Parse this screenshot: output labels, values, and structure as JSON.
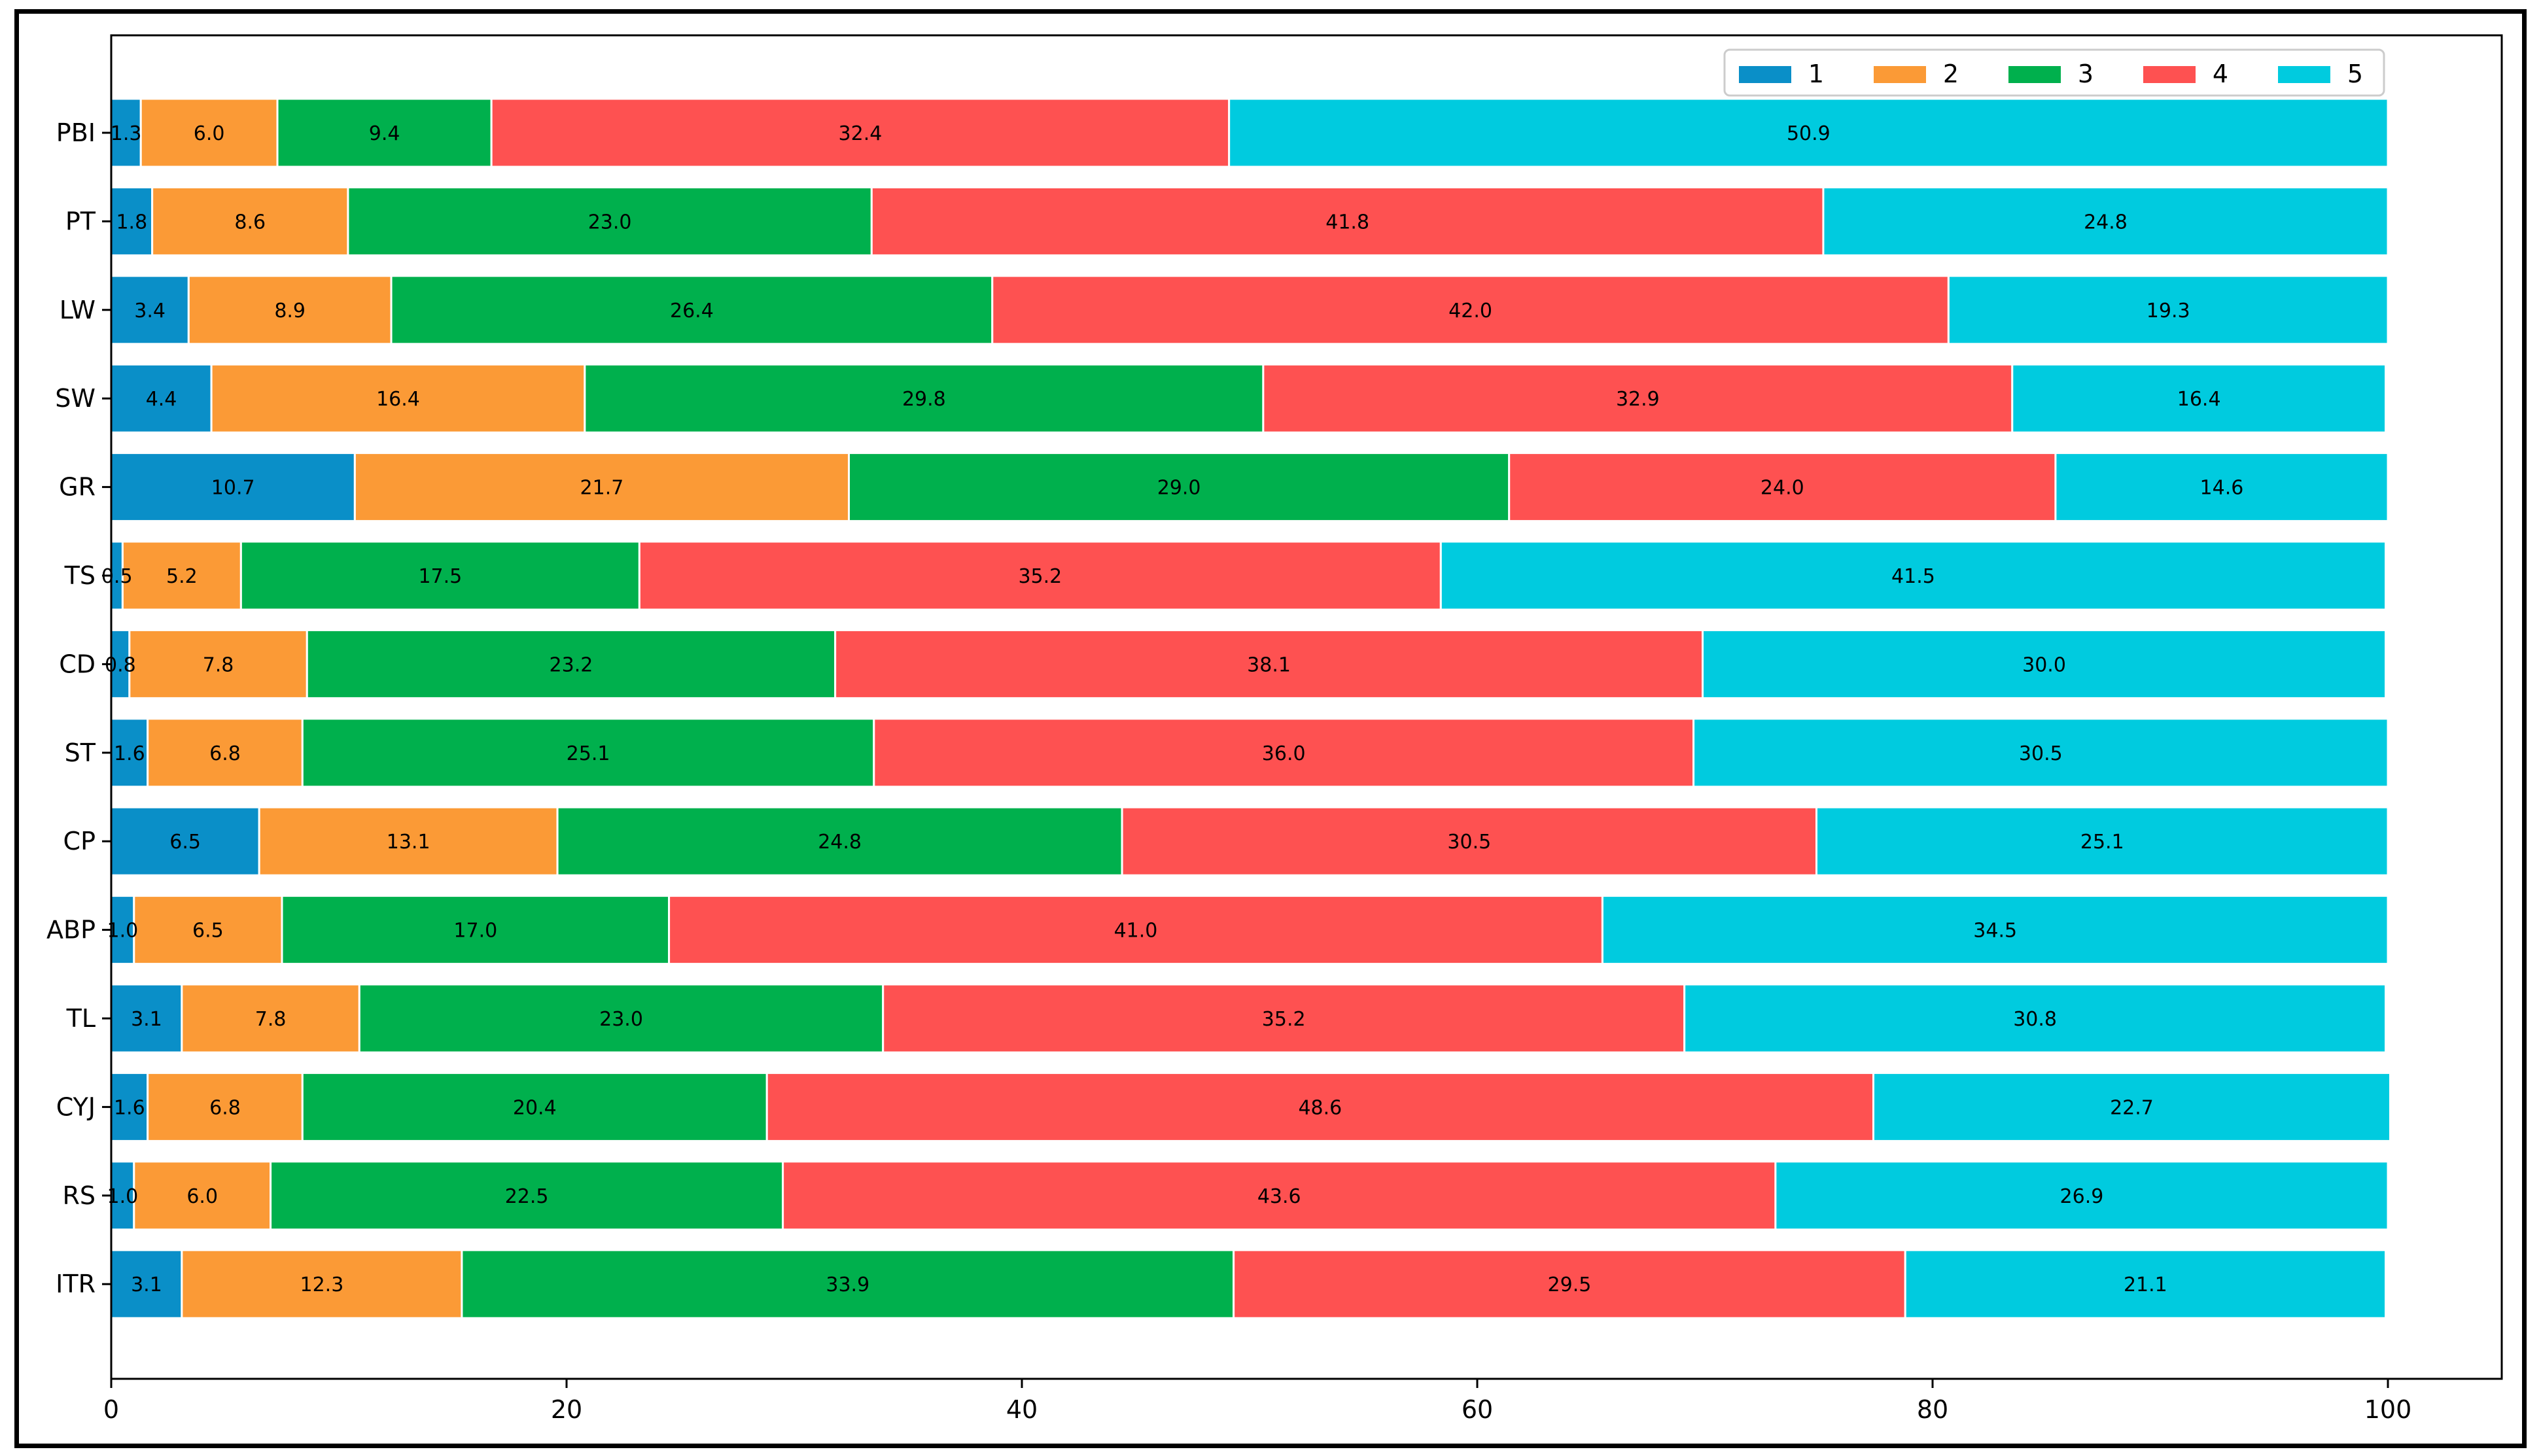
{
  "chart_data": {
    "type": "bar",
    "orientation": "horizontal",
    "stacked": true,
    "title": "",
    "xlabel": "",
    "ylabel": "",
    "xlim": [
      0,
      100
    ],
    "x_ticks": [
      "0",
      "20",
      "40",
      "60",
      "80",
      "100"
    ],
    "grid": false,
    "legend_position": "top-right",
    "categories": [
      "PBI",
      "PT",
      "LW",
      "SW",
      "GR",
      "TS",
      "CD",
      "ST",
      "CP",
      "ABP",
      "TL",
      "CYJ",
      "RS",
      "ITR"
    ],
    "series": [
      {
        "name": "1",
        "color": "#0a8fc8",
        "values": [
          1.3,
          1.8,
          3.4,
          4.4,
          10.7,
          0.5,
          0.8,
          1.6,
          6.5,
          1.0,
          3.1,
          1.6,
          1.0,
          3.1
        ],
        "labels": [
          "1.3",
          "1.8",
          "3.4",
          "4.4",
          "10.7",
          "0.5",
          "0.8",
          "1.6",
          "6.5",
          "1.0",
          "3.1",
          "1.6",
          "1.0",
          "3.1"
        ]
      },
      {
        "name": "2",
        "color": "#fb9a36",
        "values": [
          6.0,
          8.6,
          8.9,
          16.4,
          21.7,
          5.2,
          7.8,
          6.8,
          13.1,
          6.5,
          7.8,
          6.8,
          6.0,
          12.3
        ],
        "labels": [
          "6.0",
          "8.6",
          "8.9",
          "16.4",
          "21.7",
          "5.2",
          "7.8",
          "6.8",
          "13.1",
          "6.5",
          "7.8",
          "6.8",
          "6.0",
          "12.3"
        ]
      },
      {
        "name": "3",
        "color": "#00b04d",
        "values": [
          9.4,
          23.0,
          26.4,
          29.8,
          29.0,
          17.5,
          23.2,
          25.1,
          24.8,
          17.0,
          23.0,
          20.4,
          22.5,
          33.9
        ],
        "labels": [
          "9.4",
          "23.0",
          "26.4",
          "29.8",
          "29.0",
          "17.5",
          "23.2",
          "25.1",
          "24.8",
          "17.0",
          "23.0",
          "20.4",
          "22.5",
          "33.9"
        ]
      },
      {
        "name": "4",
        "color": "#fe5151",
        "values": [
          32.4,
          41.8,
          42.0,
          32.9,
          24.0,
          35.2,
          38.1,
          36.0,
          30.5,
          41.0,
          35.2,
          48.6,
          43.6,
          29.5
        ],
        "labels": [
          "32.4",
          "41.8",
          "42.0",
          "32.9",
          "24.0",
          "35.2",
          "38.1",
          "36.0",
          "30.5",
          "41.0",
          "35.2",
          "48.6",
          "43.6",
          "29.5"
        ]
      },
      {
        "name": "5",
        "color": "#00cbdf",
        "values": [
          50.9,
          24.8,
          19.3,
          16.4,
          14.6,
          41.5,
          30.0,
          30.5,
          25.1,
          34.5,
          30.8,
          22.7,
          26.9,
          21.1
        ],
        "labels": [
          "50.9",
          "24.8",
          "19.3",
          "16.4",
          "14.6",
          "41.5",
          "30.0",
          "30.5",
          "25.1",
          "34.5",
          "30.8",
          "22.7",
          "26.9",
          "21.1"
        ]
      }
    ]
  }
}
